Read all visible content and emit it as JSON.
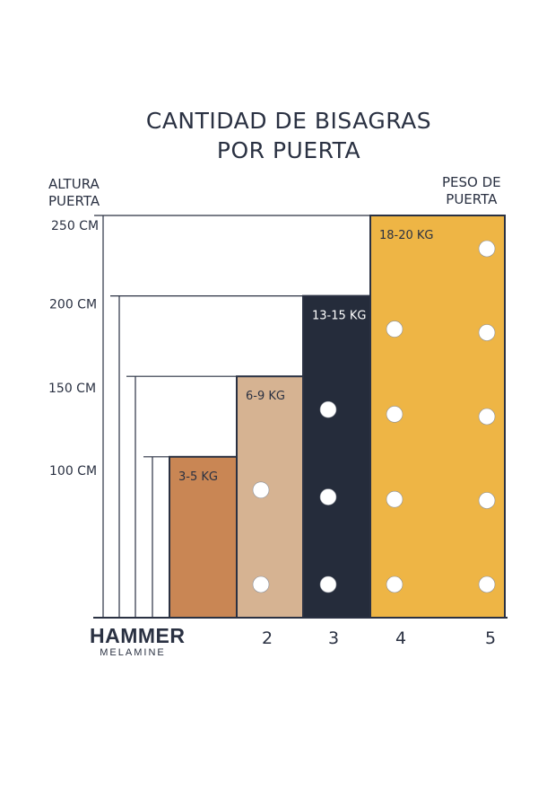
{
  "title_lines": [
    "CANTIDAD DE BISAGRAS",
    "POR PUERTA"
  ],
  "y_caption": [
    "ALTURA",
    "PUERTA"
  ],
  "weight_caption": [
    "PESO DE",
    "PUERTA"
  ],
  "logo": {
    "main": "HAMMER",
    "sub": "MELAMINE"
  },
  "colors": {
    "ink": "#2a3142",
    "light_dot": "#ffffff"
  },
  "chart_data": {
    "type": "bar",
    "title": "CANTIDAD DE BISAGRAS POR PUERTA",
    "ylabel": "ALTURA PUERTA",
    "ytick_labels": [
      "250 CM",
      "200 CM",
      "150 CM",
      "100 CM"
    ],
    "ytick_values": [
      250,
      200,
      150,
      100
    ],
    "ylim": [
      0,
      250
    ],
    "categories": [
      "2",
      "3",
      "4",
      "5"
    ],
    "weights": [
      "3-5 KG",
      "6-9 KG",
      "13-15 KG",
      "18-20 KG"
    ],
    "heights_cm": [
      100,
      150,
      200,
      250
    ],
    "colors": [
      "#c98654",
      "#d6b392",
      "#252c3b",
      "#eeb545"
    ],
    "label_colors": [
      "#2a3142",
      "#2a3142",
      "#ffffff",
      "#2a3142"
    ],
    "hinges": [
      2,
      3,
      4,
      5
    ]
  }
}
